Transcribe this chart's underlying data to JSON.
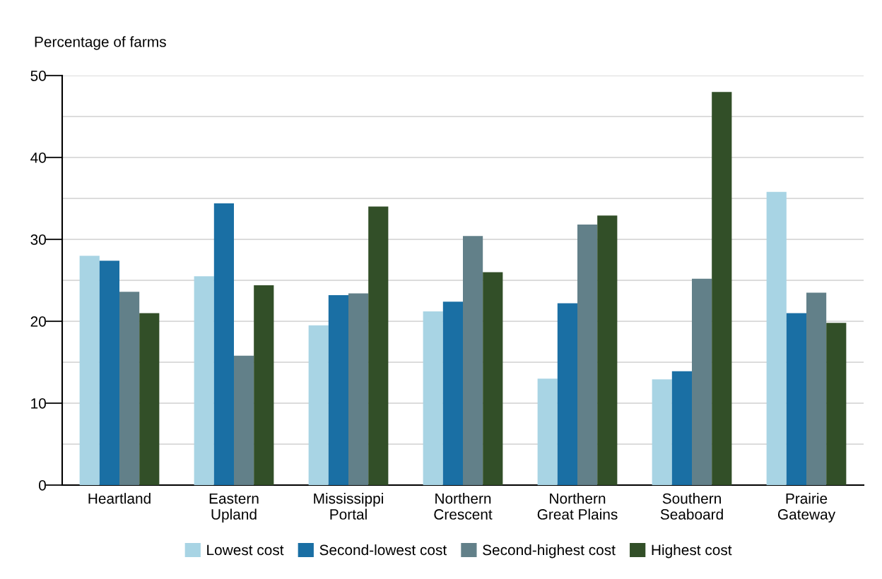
{
  "chart_data": {
    "type": "bar",
    "ylabel": "Percentage of farms",
    "categories": [
      "Heartland",
      "Eastern\nUpland",
      "Mississippi\nPortal",
      "Northern\nCrescent",
      "Northern\nGreat Plains",
      "Southern\nSeaboard",
      "Prairie\nGateway"
    ],
    "series": [
      {
        "name": "Lowest cost",
        "color": "#a8d4e4",
        "values": [
          28.0,
          25.5,
          19.5,
          21.2,
          13.0,
          12.9,
          35.8
        ]
      },
      {
        "name": "Second-lowest cost",
        "color": "#1a6fa4",
        "values": [
          27.4,
          34.4,
          23.2,
          22.4,
          22.2,
          13.9,
          21.0
        ]
      },
      {
        "name": "Second-highest cost",
        "color": "#628089",
        "values": [
          23.6,
          15.8,
          23.4,
          30.4,
          31.8,
          25.2,
          23.5
        ]
      },
      {
        "name": "Highest cost",
        "color": "#324f28",
        "values": [
          21.0,
          24.4,
          34.0,
          26.0,
          32.9,
          48.0,
          19.8
        ]
      }
    ],
    "ylim": [
      0,
      50
    ],
    "yticks": [
      0,
      {
        "value": 5,
        "label": null
      },
      10,
      {
        "value": 15,
        "label": null
      },
      20,
      {
        "value": 25,
        "label": null
      },
      30,
      {
        "value": 35,
        "label": null
      },
      40,
      {
        "value": 45,
        "label": null
      },
      50
    ],
    "grid": "y",
    "legend": "bottom"
  }
}
